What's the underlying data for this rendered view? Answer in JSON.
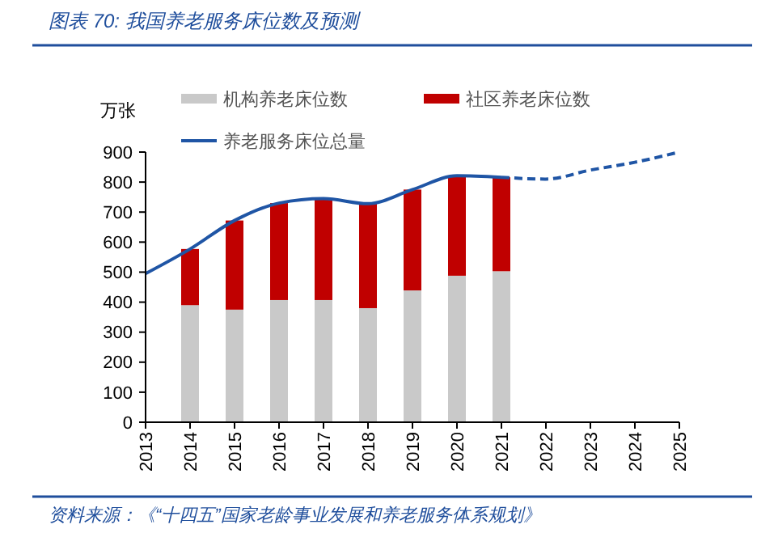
{
  "chart_data": {
    "type": "bar",
    "title": "图表 70:  我国养老服务床位数及预测",
    "ylabel": "万张",
    "categories": [
      "2013",
      "2014",
      "2015",
      "2016",
      "2017",
      "2018",
      "2019",
      "2020",
      "2021",
      "2022",
      "2023",
      "2024",
      "2025"
    ],
    "stacked": true,
    "series": [
      {
        "name": "机构养老床位数",
        "color": "#c9c9c9",
        "values": [
          null,
          390,
          375,
          407,
          407,
          380,
          439,
          488,
          503,
          null,
          null,
          null,
          null
        ]
      },
      {
        "name": "社区养老床位数",
        "color": "#c00000",
        "values": [
          null,
          187,
          297,
          323,
          338,
          348,
          336,
          333,
          313,
          null,
          null,
          null,
          null
        ]
      },
      {
        "name": "养老服务床位总量",
        "type": "line",
        "color": "#1f55a5",
        "line_style": "solid",
        "values": [
          495,
          577,
          672,
          730,
          745,
          728,
          775,
          821,
          816,
          null,
          null,
          null,
          null
        ]
      },
      {
        "type": "line",
        "color": "#1f55a5",
        "line_style": "dashed",
        "values": [
          null,
          null,
          null,
          null,
          null,
          null,
          null,
          null,
          816,
          810,
          840,
          866,
          900
        ]
      }
    ],
    "ylim": [
      0,
      900
    ],
    "yticks": [
      0,
      100,
      200,
      300,
      400,
      500,
      600,
      700,
      800,
      900
    ],
    "grid": false,
    "legend": "top",
    "marker": "none",
    "annotations": [
      "资料来源：《“十四五”国家老龄事业发展和养老服务体系规划》"
    ]
  }
}
